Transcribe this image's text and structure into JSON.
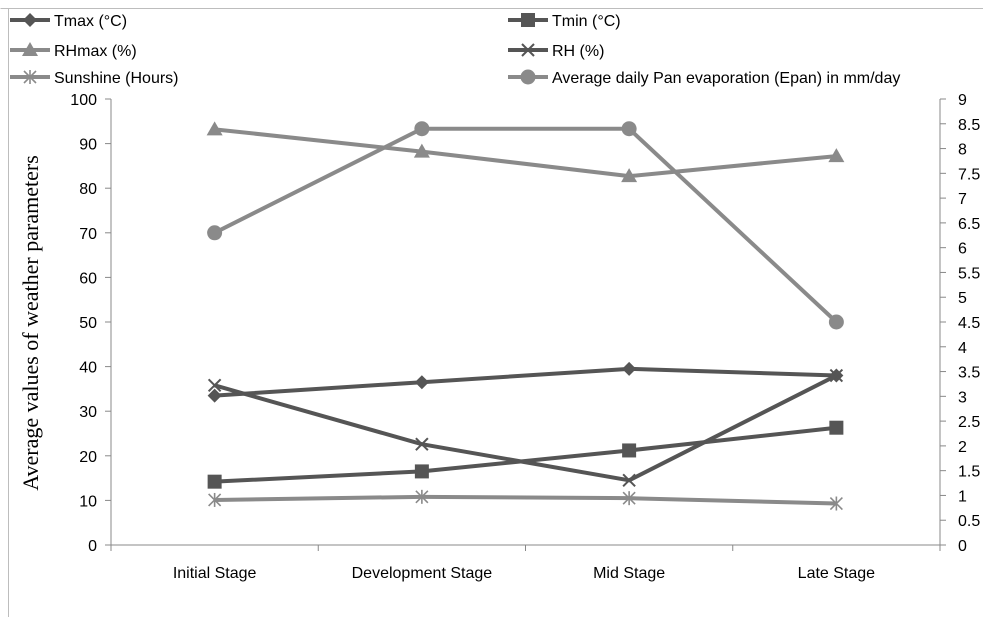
{
  "chart_data": {
    "type": "line",
    "title": "",
    "xlabel": "",
    "ylabel": "Average values of weather parameters",
    "y2label": "",
    "categories": [
      "Initial Stage",
      "Development Stage",
      "Mid Stage",
      "Late Stage"
    ],
    "ylim": [
      0,
      100
    ],
    "y2lim": [
      0,
      9
    ],
    "y_ticks": [
      "0",
      "10",
      "20",
      "30",
      "40",
      "50",
      "60",
      "70",
      "80",
      "90",
      "100"
    ],
    "y2_ticks": [
      "0",
      "0.5",
      "1",
      "1.5",
      "2",
      "2.5",
      "3",
      "3.5",
      "4",
      "4.5",
      "5",
      "5.5",
      "6",
      "6.5",
      "7",
      "7.5",
      "8",
      "8.5",
      "9"
    ],
    "grid": false,
    "legend_position": "top",
    "series": [
      {
        "name": "Tmax (°C)",
        "axis": "left",
        "values": [
          33.5,
          36.5,
          39.5,
          38
        ],
        "color": "#555555",
        "marker": "diamond"
      },
      {
        "name": "Tmin (°C)",
        "axis": "left",
        "values": [
          14.2,
          16.5,
          21.2,
          26.3
        ],
        "color": "#555555",
        "marker": "square"
      },
      {
        "name": "RHmax (%)",
        "axis": "left",
        "values": [
          93.2,
          88.2,
          82.7,
          87.2
        ],
        "color": "#8a8a8a",
        "marker": "triangle"
      },
      {
        "name": "RH (%)",
        "axis": "left",
        "values": [
          35.8,
          22.6,
          14.5,
          38
        ],
        "color": "#555555",
        "marker": "x"
      },
      {
        "name": "Sunshine (Hours)",
        "axis": "left",
        "values": [
          10.1,
          10.8,
          10.5,
          9.3
        ],
        "color": "#8a8a8a",
        "marker": "star"
      },
      {
        "name": "Average daily Pan evaporation (Epan) in mm/day",
        "axis": "right",
        "values": [
          6.3,
          8.4,
          8.4,
          4.5
        ],
        "color": "#8a8a8a",
        "marker": "circle"
      }
    ]
  }
}
